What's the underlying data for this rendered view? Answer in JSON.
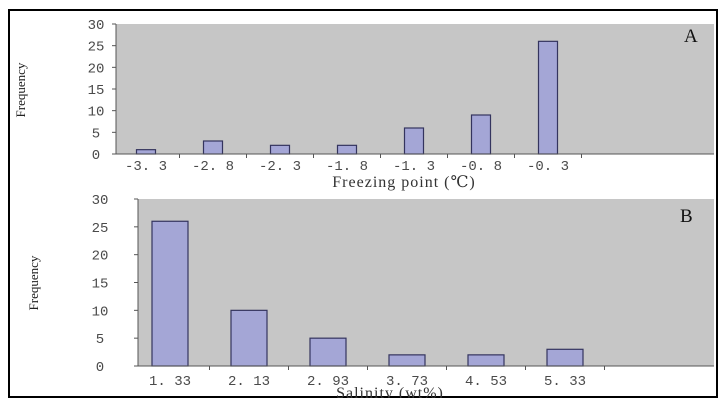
{
  "colors": {
    "bar_fill": "#a4a6d6",
    "bar_stroke": "#34345e",
    "plot_bg": "#c6c6c6",
    "axis": "#555555"
  },
  "chart_data": [
    {
      "type": "bar",
      "panel_label": "A",
      "title": "",
      "xlabel": "Freezing point (℃)",
      "ylabel": "Frequency",
      "categories": [
        "-3. 3",
        "-2. 8",
        "-2. 3",
        "-1. 8",
        "-1. 3",
        "-0. 8",
        "-0. 3"
      ],
      "values": [
        1,
        3,
        2,
        2,
        6,
        9,
        26
      ],
      "ylim": [
        0,
        30
      ],
      "yticks": [
        0,
        5,
        10,
        15,
        20,
        25,
        30
      ],
      "grid": false
    },
    {
      "type": "bar",
      "panel_label": "B",
      "title": "",
      "xlabel": "Salinity (wt%)",
      "ylabel": "Frequency",
      "categories": [
        "1. 33",
        "2. 13",
        "2. 93",
        "3. 73",
        "4. 53",
        "5. 33"
      ],
      "values": [
        26,
        10,
        5,
        2,
        2,
        3
      ],
      "ylim": [
        0,
        30
      ],
      "yticks": [
        0,
        5,
        10,
        15,
        20,
        25,
        30
      ],
      "grid": false
    }
  ]
}
